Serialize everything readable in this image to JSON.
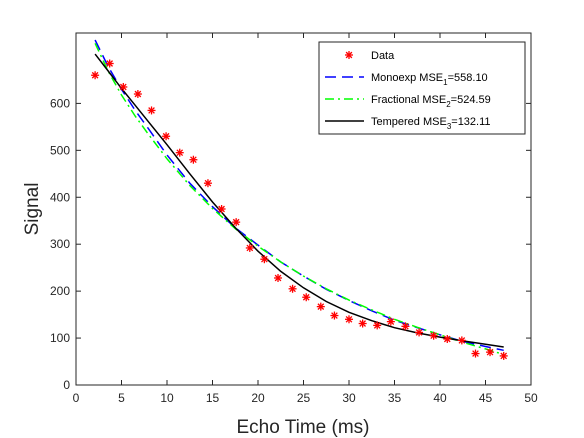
{
  "chart_data": {
    "type": "scatter",
    "xlabel": "Echo Time (ms)",
    "ylabel": "Signal",
    "xlim": [
      0,
      50
    ],
    "ylim": [
      0,
      750
    ],
    "xticks": [
      0,
      5,
      10,
      15,
      20,
      25,
      30,
      35,
      40,
      45,
      50
    ],
    "yticks": [
      0,
      100,
      200,
      300,
      400,
      500,
      600
    ],
    "grid": false,
    "legend_position": "top-right",
    "series": [
      {
        "name": "Data",
        "kind": "markers",
        "marker": "asterisk",
        "color": "#ff0000",
        "x": [
          2.1,
          3.7,
          5.2,
          6.8,
          8.3,
          9.9,
          11.4,
          12.9,
          14.5,
          16.0,
          17.6,
          19.1,
          20.7,
          22.2,
          23.8,
          25.3,
          26.9,
          28.4,
          30.0,
          31.5,
          33.1,
          34.6,
          36.2,
          37.7,
          39.3,
          40.8,
          42.4,
          43.9,
          45.5,
          47.0
        ],
        "y": [
          660,
          685,
          635,
          620,
          585,
          530,
          495,
          480,
          430,
          375,
          347,
          292,
          268,
          228,
          205,
          187,
          167,
          148,
          140,
          131,
          127,
          135,
          125,
          112,
          105,
          98,
          95,
          67,
          70,
          62
        ]
      },
      {
        "name": "Monoexp MSE",
        "subscript": "1",
        "value": "=558.10",
        "kind": "line",
        "dash": "dashed",
        "color": "#0000ff",
        "x": [
          2.1,
          3.5,
          5,
          6.5,
          8,
          10,
          12.5,
          15,
          17.5,
          20,
          22.5,
          25,
          27.5,
          30,
          32.5,
          35,
          37.5,
          40,
          42.5,
          45,
          47
        ],
        "y": [
          735,
          680,
          630,
          585,
          545,
          490,
          430,
          380,
          335,
          298,
          262,
          232,
          204,
          180,
          158,
          138,
          122,
          107,
          93,
          82,
          74
        ]
      },
      {
        "name": "Fractional MSE",
        "subscript": "2",
        "value": "=524.59",
        "kind": "line",
        "dash": "dashdot",
        "color": "#00ff00",
        "x": [
          2.1,
          3.5,
          5,
          6.5,
          8,
          10,
          12.5,
          15,
          17.5,
          20,
          22.5,
          25,
          27.5,
          30,
          32.5,
          35,
          37.5,
          40,
          42.5,
          45,
          47
        ],
        "y": [
          728,
          670,
          618,
          573,
          533,
          482,
          425,
          376,
          333,
          296,
          262,
          232,
          205,
          181,
          160,
          140,
          123,
          107,
          91,
          77,
          65
        ]
      },
      {
        "name": "Tempered MSE",
        "subscript": "3",
        "value": "=132.11",
        "kind": "line",
        "dash": "solid",
        "color": "#000000",
        "x": [
          2.1,
          3.5,
          5,
          6.5,
          8,
          10,
          12.5,
          15,
          17.5,
          20,
          22.5,
          25,
          27.5,
          30,
          32.5,
          35,
          37.5,
          40,
          42.5,
          45,
          47
        ],
        "y": [
          705,
          670,
          632,
          596,
          560,
          512,
          450,
          390,
          335,
          285,
          242,
          207,
          178,
          155,
          137,
          122,
          111,
          102,
          94,
          87,
          81
        ]
      }
    ]
  }
}
